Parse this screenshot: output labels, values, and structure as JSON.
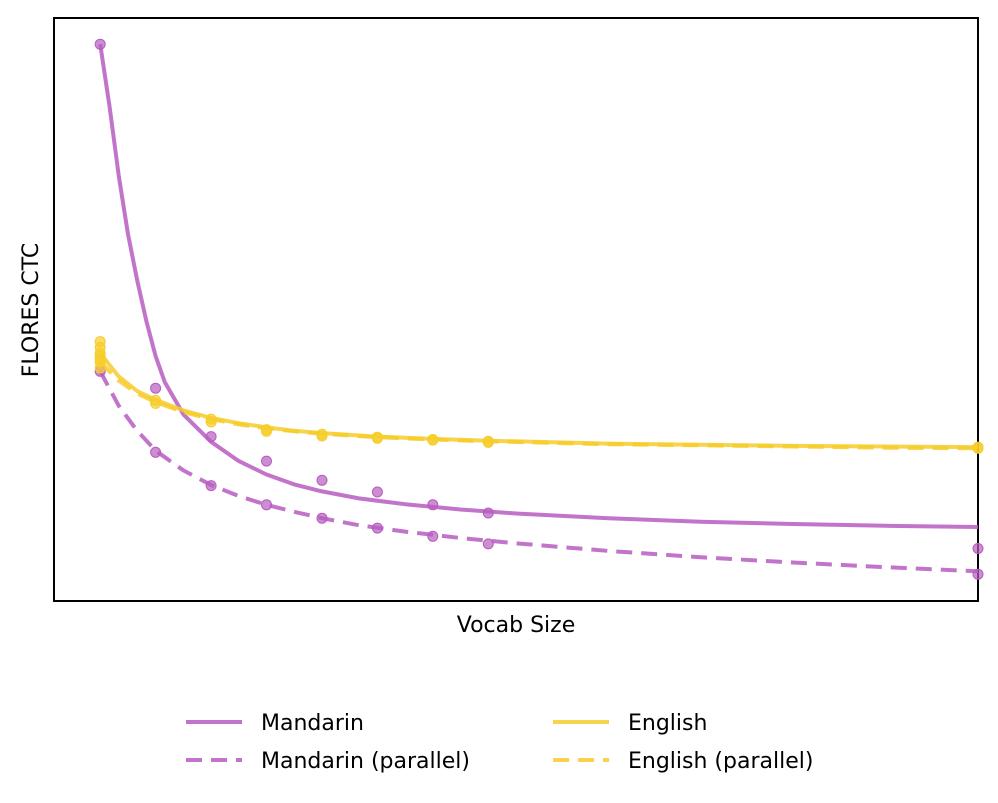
{
  "chart_data": {
    "type": "line",
    "title": "",
    "xlabel": "Vocab Size",
    "ylabel": "FLORES CTC",
    "xticks": "none",
    "yticks": "none",
    "xlim": [
      0,
      100
    ],
    "ylim": [
      0,
      100
    ],
    "grid": false,
    "legend_position": "bottom-center",
    "series": [
      {
        "name": "Mandarin",
        "color": "#b65cbf",
        "dash": "solid",
        "points": [
          [
            5,
            95.5
          ],
          [
            11,
            36.5
          ],
          [
            17,
            28.2
          ],
          [
            23,
            24.0
          ],
          [
            29,
            20.7
          ],
          [
            35,
            18.7
          ],
          [
            41,
            16.5
          ],
          [
            47,
            15.1
          ],
          [
            100,
            9.0
          ]
        ],
        "fit": [
          [
            5,
            95.5
          ],
          [
            6,
            85
          ],
          [
            7,
            73
          ],
          [
            8,
            63
          ],
          [
            9,
            55
          ],
          [
            10,
            48
          ],
          [
            11,
            42
          ],
          [
            12,
            37.5
          ],
          [
            14,
            32
          ],
          [
            17,
            27.3
          ],
          [
            20,
            24.0
          ],
          [
            23,
            21.7
          ],
          [
            26,
            20.0
          ],
          [
            29,
            18.8
          ],
          [
            33,
            17.6
          ],
          [
            38,
            16.6
          ],
          [
            44,
            15.7
          ],
          [
            50,
            15.0
          ],
          [
            60,
            14.2
          ],
          [
            70,
            13.6
          ],
          [
            80,
            13.2
          ],
          [
            90,
            12.9
          ],
          [
            100,
            12.7
          ]
        ]
      },
      {
        "name": "Mandarin (parallel)",
        "color": "#b65cbf",
        "dash": "dashed",
        "points": [
          [
            5,
            39.4
          ],
          [
            11,
            25.5
          ],
          [
            17,
            19.8
          ],
          [
            23,
            16.5
          ],
          [
            29,
            14.2
          ],
          [
            35,
            12.5
          ],
          [
            41,
            11.1
          ],
          [
            47,
            9.8
          ],
          [
            100,
            4.6
          ]
        ],
        "fit": [
          [
            5,
            39.4
          ],
          [
            7,
            33.5
          ],
          [
            9,
            29.2
          ],
          [
            11,
            25.8
          ],
          [
            14,
            22.4
          ],
          [
            17,
            19.9
          ],
          [
            20,
            18.0
          ],
          [
            23,
            16.5
          ],
          [
            26,
            15.3
          ],
          [
            29,
            14.2
          ],
          [
            33,
            13.0
          ],
          [
            38,
            11.9
          ],
          [
            44,
            10.8
          ],
          [
            50,
            9.9
          ],
          [
            60,
            8.6
          ],
          [
            70,
            7.5
          ],
          [
            80,
            6.6
          ],
          [
            90,
            5.8
          ],
          [
            100,
            5.1
          ]
        ]
      },
      {
        "name": "English",
        "color": "#f6cd2b",
        "dash": "solid",
        "points": [
          [
            5,
            44.5
          ],
          [
            5,
            43.5
          ],
          [
            5,
            42.5
          ],
          [
            5,
            41.5
          ],
          [
            11,
            34.4
          ],
          [
            17,
            31.2
          ],
          [
            23,
            29.4
          ],
          [
            29,
            28.6
          ],
          [
            35,
            28.1
          ],
          [
            41,
            27.7
          ],
          [
            47,
            27.4
          ],
          [
            100,
            26.4
          ]
        ],
        "fit": [
          [
            5,
            42.5
          ],
          [
            7,
            38.5
          ],
          [
            9,
            36.0
          ],
          [
            11,
            34.5
          ],
          [
            14,
            32.7
          ],
          [
            17,
            31.4
          ],
          [
            20,
            30.5
          ],
          [
            23,
            29.8
          ],
          [
            26,
            29.2
          ],
          [
            29,
            28.8
          ],
          [
            35,
            28.2
          ],
          [
            41,
            27.8
          ],
          [
            47,
            27.5
          ],
          [
            60,
            27.0
          ],
          [
            70,
            26.8
          ],
          [
            80,
            26.6
          ],
          [
            90,
            26.5
          ],
          [
            100,
            26.4
          ]
        ]
      },
      {
        "name": "English (parallel)",
        "color": "#f6cd2b",
        "dash": "dashed",
        "points": [
          [
            5,
            42.0
          ],
          [
            5,
            41.0
          ],
          [
            5,
            40.0
          ],
          [
            11,
            33.9
          ],
          [
            17,
            30.7
          ],
          [
            23,
            29.1
          ],
          [
            29,
            28.3
          ],
          [
            35,
            27.9
          ],
          [
            41,
            27.6
          ],
          [
            47,
            27.2
          ],
          [
            100,
            26.2
          ]
        ],
        "fit": [
          [
            5,
            41.0
          ],
          [
            7,
            37.8
          ],
          [
            9,
            35.6
          ],
          [
            11,
            34.1
          ],
          [
            14,
            32.4
          ],
          [
            17,
            31.2
          ],
          [
            20,
            30.3
          ],
          [
            23,
            29.6
          ],
          [
            26,
            29.1
          ],
          [
            29,
            28.7
          ],
          [
            35,
            28.1
          ],
          [
            41,
            27.7
          ],
          [
            47,
            27.4
          ],
          [
            60,
            26.9
          ],
          [
            70,
            26.7
          ],
          [
            80,
            26.5
          ],
          [
            90,
            26.3
          ],
          [
            100,
            26.2
          ]
        ]
      }
    ]
  }
}
